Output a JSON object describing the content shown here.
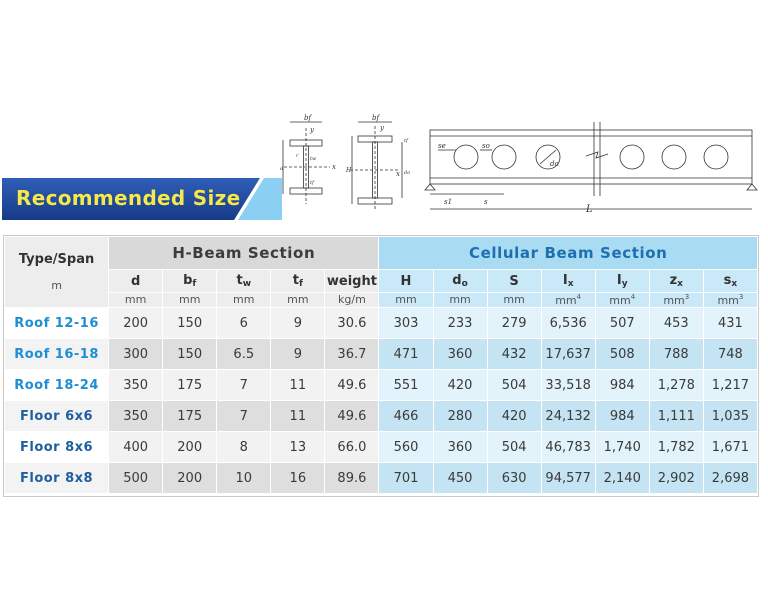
{
  "banner": {
    "title": "Recommended Size"
  },
  "diagram": {
    "hbeam1": {
      "b": "bf",
      "y": "y",
      "x": "x",
      "d": "d",
      "r": "r",
      "tw": "tw",
      "tf": "tf"
    },
    "hbeam2": {
      "b": "bf",
      "y": "y",
      "x": "x",
      "H": "H",
      "d": "do",
      "t": "tf"
    },
    "cellular": {
      "se": "se",
      "so": "so",
      "do": "do",
      "s1": "s1",
      "s": "s",
      "L": "L"
    }
  },
  "table": {
    "type_header": "Type/Span",
    "type_unit": "m",
    "hbeam_title": "H-Beam Section",
    "cellular_title": "Cellular Beam Section",
    "hbeam_cols": [
      {
        "sym": "d",
        "sub": "",
        "sup": "",
        "unit": "mm"
      },
      {
        "sym": "b",
        "sub": "f",
        "sup": "",
        "unit": "mm"
      },
      {
        "sym": "t",
        "sub": "w",
        "sup": "",
        "unit": "mm"
      },
      {
        "sym": "t",
        "sub": "f",
        "sup": "",
        "unit": "mm"
      },
      {
        "sym": "weight",
        "sub": "",
        "sup": "",
        "unit": "kg/m"
      }
    ],
    "cellular_cols": [
      {
        "sym": "H",
        "sub": "",
        "unit": "mm",
        "usup": ""
      },
      {
        "sym": "d",
        "sub": "o",
        "unit": "mm",
        "usup": ""
      },
      {
        "sym": "S",
        "sub": "",
        "unit": "mm",
        "usup": ""
      },
      {
        "sym": "I",
        "sub": "x",
        "unit": "mm",
        "usup": "4"
      },
      {
        "sym": "I",
        "sub": "y",
        "unit": "mm",
        "usup": "4"
      },
      {
        "sym": "z",
        "sub": "x",
        "unit": "mm",
        "usup": "3"
      },
      {
        "sym": "s",
        "sub": "x",
        "unit": "mm",
        "usup": "3"
      }
    ],
    "rows": [
      {
        "label": "Roof  12-16",
        "hbeam": [
          "200",
          "150",
          "6",
          "9",
          "30.6"
        ],
        "cellular": [
          "303",
          "233",
          "279",
          "6,536",
          "507",
          "453",
          "431"
        ]
      },
      {
        "label": "Roof  16-18",
        "hbeam": [
          "300",
          "150",
          "6.5",
          "9",
          "36.7"
        ],
        "cellular": [
          "471",
          "360",
          "432",
          "17,637",
          "508",
          "788",
          "748"
        ]
      },
      {
        "label": "Roof  18-24",
        "hbeam": [
          "350",
          "175",
          "7",
          "11",
          "49.6"
        ],
        "cellular": [
          "551",
          "420",
          "504",
          "33,518",
          "984",
          "1,278",
          "1,217"
        ]
      },
      {
        "label": "Floor  6x6",
        "hbeam": [
          "350",
          "175",
          "7",
          "11",
          "49.6"
        ],
        "cellular": [
          "466",
          "280",
          "420",
          "24,132",
          "984",
          "1,111",
          "1,035"
        ]
      },
      {
        "label": "Floor  8x6",
        "hbeam": [
          "400",
          "200",
          "8",
          "13",
          "66.0"
        ],
        "cellular": [
          "560",
          "360",
          "504",
          "46,783",
          "1,740",
          "1,782",
          "1,671"
        ]
      },
      {
        "label": "Floor  8x8",
        "hbeam": [
          "500",
          "200",
          "10",
          "16",
          "89.6"
        ],
        "cellular": [
          "701",
          "450",
          "630",
          "94,577",
          "2,140",
          "2,902",
          "2,698"
        ]
      }
    ]
  }
}
